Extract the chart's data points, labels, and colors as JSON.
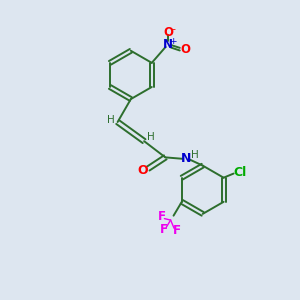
{
  "background_color": "#dde6f0",
  "bond_color": "#2d6e2d",
  "atom_colors": {
    "O": "#ff0000",
    "N_nitro": "#0000cc",
    "N_amide": "#0000cc",
    "Cl": "#00aa00",
    "F": "#ee00ee",
    "H": "#2d6e2d",
    "C": "#2d6e2d"
  },
  "figsize": [
    3.0,
    3.0
  ],
  "dpi": 100
}
